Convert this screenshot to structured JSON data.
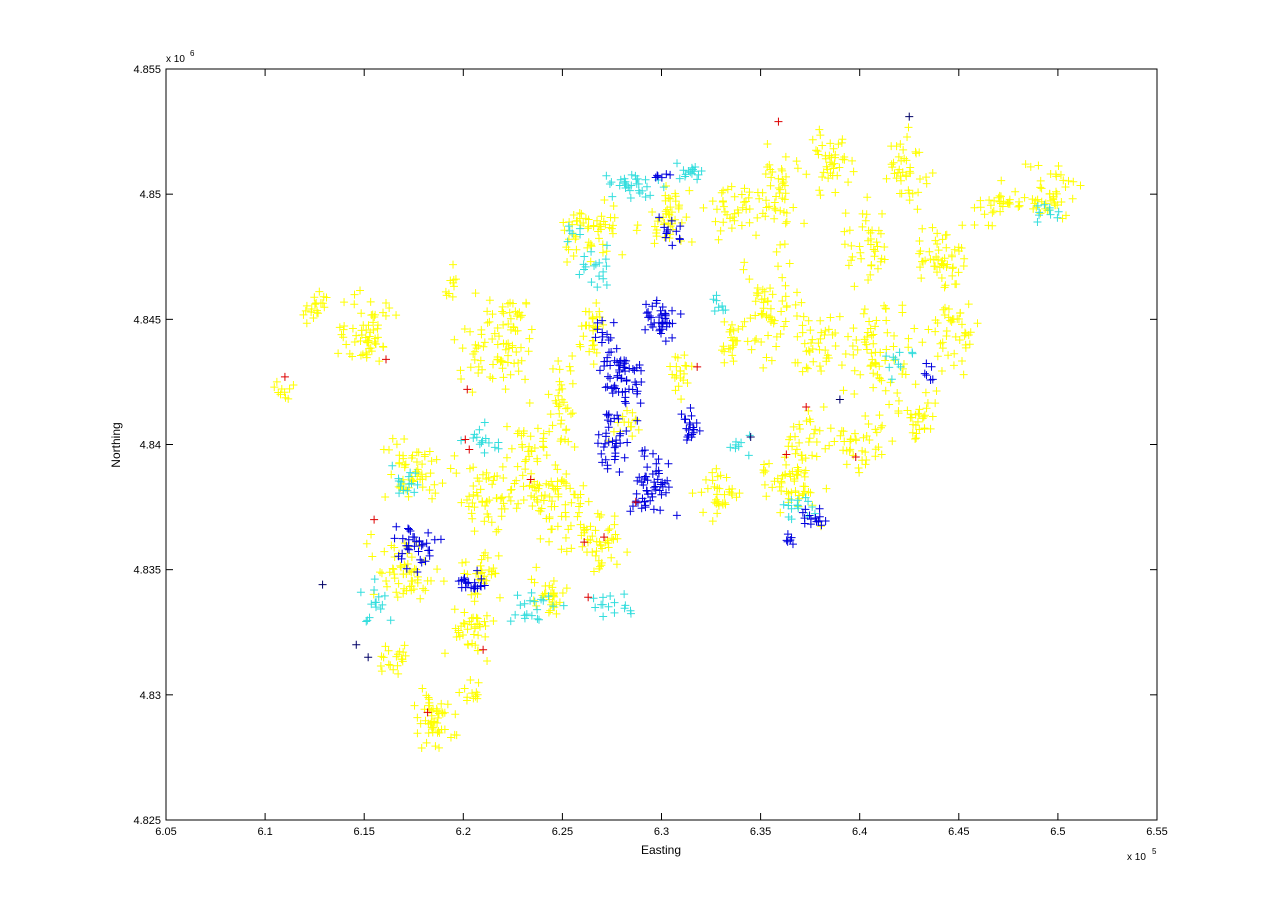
{
  "chart_data": {
    "type": "scatter",
    "marker": "+",
    "title": "",
    "xlabel": "Easting",
    "ylabel": "Northing",
    "x_multiplier_label": "x 10",
    "x_multiplier_exp": "5",
    "y_multiplier_label": "x 10",
    "y_multiplier_exp": "6",
    "xlim": [
      605000,
      655000
    ],
    "ylim": [
      4825000,
      4855000
    ],
    "x_ticks": [
      605000,
      610000,
      615000,
      620000,
      625000,
      630000,
      635000,
      640000,
      645000,
      650000,
      655000
    ],
    "y_ticks": [
      4825000,
      4830000,
      4835000,
      4840000,
      4845000,
      4850000,
      4855000
    ],
    "x_tick_labels": [
      "6.05",
      "6.1",
      "6.15",
      "6.2",
      "6.25",
      "6.3",
      "6.35",
      "6.4",
      "6.45",
      "6.5",
      "6.55"
    ],
    "y_tick_labels": [
      "4.825",
      "4.83",
      "4.835",
      "4.84",
      "4.845",
      "4.85",
      "4.855"
    ],
    "grid": false,
    "series": [
      {
        "color": "#ffff00",
        "clusters": [
          [
            615000,
            4844500,
            1400,
            1400,
            60
          ],
          [
            621500,
            4843800,
            1800,
            1500,
            70
          ],
          [
            617500,
            4839000,
            1400,
            1200,
            55
          ],
          [
            621500,
            4838000,
            1800,
            1600,
            70
          ],
          [
            624500,
            4838000,
            1500,
            1400,
            65
          ],
          [
            626500,
            4836500,
            1400,
            1300,
            55
          ],
          [
            617000,
            4835000,
            1500,
            1200,
            60
          ],
          [
            620500,
            4832500,
            1000,
            1000,
            40
          ],
          [
            618500,
            4829000,
            1000,
            900,
            50
          ],
          [
            620500,
            4830000,
            500,
            500,
            12
          ],
          [
            625000,
            4841500,
            800,
            1500,
            35
          ],
          [
            626500,
            4844500,
            800,
            1400,
            30
          ],
          [
            626500,
            4848500,
            1400,
            1000,
            55
          ],
          [
            630500,
            4849000,
            1200,
            1100,
            45
          ],
          [
            633500,
            4849500,
            1200,
            1000,
            40
          ],
          [
            636000,
            4850000,
            1000,
            1300,
            45
          ],
          [
            638500,
            4851500,
            1000,
            1000,
            40
          ],
          [
            642500,
            4851000,
            1000,
            1200,
            40
          ],
          [
            640500,
            4848000,
            1000,
            1300,
            40
          ],
          [
            644000,
            4847500,
            1400,
            1200,
            55
          ],
          [
            647000,
            4849500,
            1000,
            800,
            30
          ],
          [
            649500,
            4850000,
            1300,
            1000,
            45
          ],
          [
            635500,
            4845500,
            1300,
            1800,
            60
          ],
          [
            633500,
            4844000,
            800,
            1000,
            25
          ],
          [
            638000,
            4844000,
            1000,
            1200,
            40
          ],
          [
            641000,
            4843500,
            1500,
            1700,
            65
          ],
          [
            644500,
            4844500,
            1200,
            1500,
            45
          ],
          [
            643000,
            4841000,
            900,
            1000,
            30
          ],
          [
            640000,
            4840000,
            1300,
            900,
            40
          ],
          [
            636500,
            4838500,
            1400,
            1100,
            60
          ],
          [
            633000,
            4838000,
            900,
            800,
            35
          ],
          [
            637500,
            4840500,
            900,
            800,
            25
          ],
          [
            631000,
            4843000,
            600,
            800,
            20
          ],
          [
            612500,
            4845500,
            700,
            500,
            20
          ],
          [
            611000,
            4842000,
            500,
            400,
            10
          ],
          [
            622500,
            4845000,
            600,
            900,
            20
          ],
          [
            619500,
            4846500,
            400,
            600,
            10
          ],
          [
            623500,
            4840000,
            800,
            700,
            25
          ],
          [
            628500,
            4841000,
            800,
            800,
            15
          ],
          [
            616500,
            4831500,
            700,
            600,
            20
          ],
          [
            621000,
            4835000,
            900,
            900,
            30
          ],
          [
            624500,
            4834000,
            900,
            800,
            30
          ]
        ]
      },
      {
        "color": "#33dddd",
        "clusters": [
          [
            628500,
            4850300,
            1400,
            400,
            30
          ],
          [
            631500,
            4850800,
            800,
            300,
            15
          ],
          [
            626500,
            4847000,
            800,
            800,
            18
          ],
          [
            621000,
            4840000,
            1000,
            600,
            15
          ],
          [
            617000,
            4838500,
            900,
            700,
            15
          ],
          [
            615500,
            4833500,
            700,
            900,
            15
          ],
          [
            623500,
            4833500,
            1200,
            600,
            20
          ],
          [
            627500,
            4833500,
            1200,
            500,
            15
          ],
          [
            637000,
            4837500,
            900,
            600,
            15
          ],
          [
            642000,
            4843500,
            800,
            700,
            10
          ],
          [
            649500,
            4849300,
            700,
            600,
            10
          ],
          [
            633000,
            4845500,
            500,
            400,
            8
          ],
          [
            625500,
            4848500,
            400,
            400,
            6
          ],
          [
            634000,
            4840000,
            600,
            500,
            8
          ]
        ]
      },
      {
        "color": "#0000dd",
        "clusters": [
          [
            628000,
            4843000,
            1000,
            1400,
            60
          ],
          [
            630000,
            4845000,
            800,
            700,
            40
          ],
          [
            629500,
            4838500,
            1100,
            1200,
            55
          ],
          [
            627500,
            4840000,
            700,
            1200,
            35
          ],
          [
            631500,
            4840500,
            500,
            900,
            20
          ],
          [
            617500,
            4836000,
            900,
            800,
            35
          ],
          [
            620500,
            4834500,
            600,
            400,
            20
          ],
          [
            630500,
            4848500,
            600,
            500,
            12
          ],
          [
            630000,
            4850800,
            400,
            300,
            6
          ],
          [
            637500,
            4837000,
            700,
            500,
            15
          ],
          [
            636500,
            4836200,
            300,
            200,
            6
          ],
          [
            643500,
            4842800,
            300,
            500,
            6
          ],
          [
            627000,
            4844500,
            500,
            500,
            10
          ]
        ]
      },
      {
        "color": "#000066",
        "points": [
          [
            612900,
            4834400
          ],
          [
            614600,
            4832000
          ],
          [
            615200,
            4831500
          ],
          [
            642500,
            4853100
          ],
          [
            639000,
            4841800
          ],
          [
            634500,
            4840300
          ]
        ]
      },
      {
        "color": "#dd0000",
        "points": [
          [
            611000,
            4842700
          ],
          [
            616100,
            4843400
          ],
          [
            620200,
            4842200
          ],
          [
            620300,
            4839800
          ],
          [
            620100,
            4840200
          ],
          [
            615500,
            4837000
          ],
          [
            618200,
            4829300
          ],
          [
            621000,
            4831800
          ],
          [
            623400,
            4838600
          ],
          [
            626100,
            4836100
          ],
          [
            627100,
            4836300
          ],
          [
            626300,
            4833900
          ],
          [
            628700,
            4837700
          ],
          [
            631800,
            4843100
          ],
          [
            635900,
            4852900
          ],
          [
            636300,
            4839600
          ],
          [
            637300,
            4841500
          ],
          [
            639800,
            4839500
          ]
        ]
      }
    ]
  }
}
